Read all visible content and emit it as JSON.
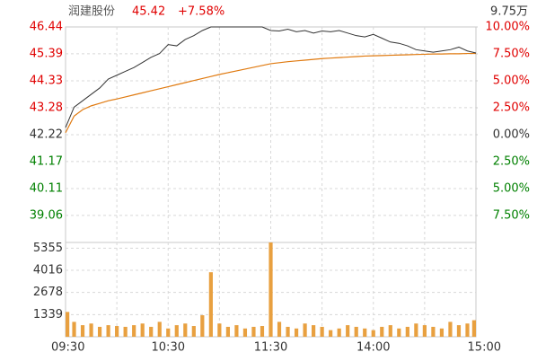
{
  "chart_data": {
    "type": "intraday",
    "title": "润建股份",
    "price_label": "45.42",
    "change_label": "+7.58%",
    "volume_total_label": "9.75万",
    "x": [
      0,
      5,
      10,
      15,
      20,
      25,
      30,
      35,
      40,
      45,
      50,
      55,
      60,
      65,
      70,
      75,
      80,
      85,
      90,
      95,
      100,
      105,
      110,
      115,
      120,
      125,
      130,
      135,
      140,
      145,
      150,
      155,
      160,
      165,
      170,
      175,
      180,
      185,
      190,
      195,
      200,
      205,
      210,
      215,
      220,
      225,
      230,
      235,
      240
    ],
    "xlim": [
      0,
      240
    ],
    "xticks": [
      {
        "value": 0,
        "label": "09:30"
      },
      {
        "value": 60,
        "label": "10:30"
      },
      {
        "value": 120,
        "label": "11:30"
      },
      {
        "value": 180,
        "label": "14:00"
      },
      {
        "value": 240,
        "label": "15:00"
      }
    ],
    "ylim": [
      38.0,
      46.44
    ],
    "yticks": [
      46.44,
      45.39,
      44.33,
      43.28,
      42.22,
      41.17,
      40.11,
      39.06
    ],
    "y2lim": [
      -10,
      10
    ],
    "y2ticks": [
      {
        "value": 10,
        "label": "10.00%"
      },
      {
        "value": 7.5,
        "label": "7.50%"
      },
      {
        "value": 5,
        "label": "5.00%"
      },
      {
        "value": 2.5,
        "label": "2.50%"
      },
      {
        "value": 0,
        "label": "0.00%"
      },
      {
        "value": -2.5,
        "label": "2.50%"
      },
      {
        "value": -5,
        "label": "5.00%"
      },
      {
        "value": -7.5,
        "label": "7.50%"
      }
    ],
    "price": {
      "color": "#333333",
      "values": [
        42.5,
        43.3,
        43.55,
        43.8,
        44.05,
        44.4,
        44.55,
        44.7,
        44.85,
        45.05,
        45.25,
        45.4,
        45.75,
        45.7,
        45.95,
        46.1,
        46.3,
        46.44,
        46.44,
        46.44,
        46.44,
        46.44,
        46.44,
        46.44,
        46.3,
        46.28,
        46.35,
        46.25,
        46.3,
        46.2,
        46.28,
        46.25,
        46.3,
        46.2,
        46.1,
        46.05,
        46.15,
        46.0,
        45.85,
        45.8,
        45.7,
        45.55,
        45.5,
        45.45,
        45.5,
        45.55,
        45.65,
        45.5,
        45.42
      ]
    },
    "average": {
      "color": "#e07a10",
      "values": [
        42.3,
        42.95,
        43.2,
        43.35,
        43.45,
        43.55,
        43.62,
        43.7,
        43.78,
        43.86,
        43.94,
        44.02,
        44.1,
        44.18,
        44.26,
        44.34,
        44.42,
        44.5,
        44.58,
        44.65,
        44.72,
        44.79,
        44.86,
        44.93,
        45.0,
        45.04,
        45.08,
        45.11,
        45.14,
        45.17,
        45.2,
        45.22,
        45.24,
        45.26,
        45.28,
        45.3,
        45.31,
        45.32,
        45.33,
        45.34,
        45.35,
        45.36,
        45.37,
        45.38,
        45.38,
        45.39,
        45.39,
        45.4,
        45.4
      ]
    },
    "volume": {
      "color": "#e8a040",
      "ylim": [
        0,
        5700
      ],
      "yticks": [
        5355,
        4016,
        2678,
        1339
      ],
      "values": [
        1500,
        900,
        700,
        800,
        600,
        700,
        650,
        600,
        700,
        800,
        600,
        900,
        500,
        700,
        800,
        650,
        1300,
        3900,
        800,
        600,
        700,
        500,
        600,
        650,
        5700,
        900,
        600,
        500,
        800,
        700,
        600,
        400,
        500,
        700,
        600,
        500,
        400,
        600,
        700,
        500,
        600,
        800,
        700,
        600,
        500,
        900,
        700,
        800,
        1000
      ]
    },
    "grid": true
  }
}
